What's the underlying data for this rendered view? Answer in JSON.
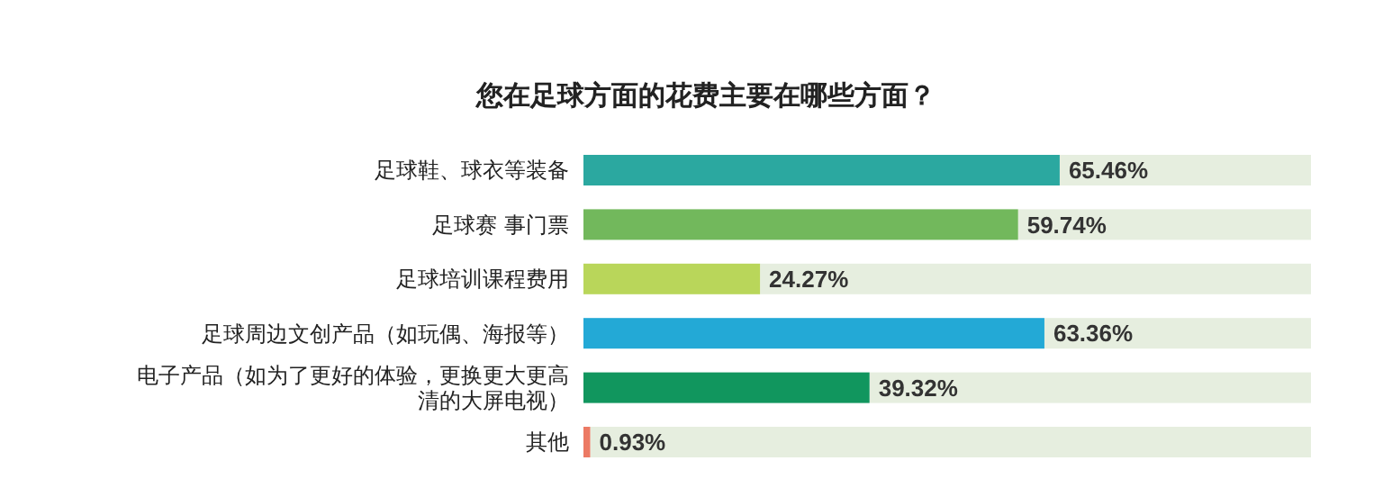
{
  "chart_data": {
    "type": "bar",
    "orientation": "horizontal",
    "title": "您在足球方面的花费主要在哪些方面？",
    "categories": [
      "足球鞋、球衣等装备",
      "足球赛 事门票",
      "足球培训课程费用",
      "足球周边文创产品（如玩偶、海报等）",
      "电子产品（如为了更好的体验，更换更大更高清的大屏电视）",
      "其他"
    ],
    "values": [
      65.46,
      59.74,
      24.27,
      63.36,
      39.32,
      0.93
    ],
    "colors": [
      "#2ba8a0",
      "#72b85c",
      "#b9d65a",
      "#23a9d6",
      "#11965e",
      "#ec7a64"
    ],
    "value_labels": [
      "65.46%",
      "59.74%",
      "24.27%",
      "63.36%",
      "39.32%",
      "0.93%"
    ],
    "xlim": [
      0,
      100
    ]
  }
}
